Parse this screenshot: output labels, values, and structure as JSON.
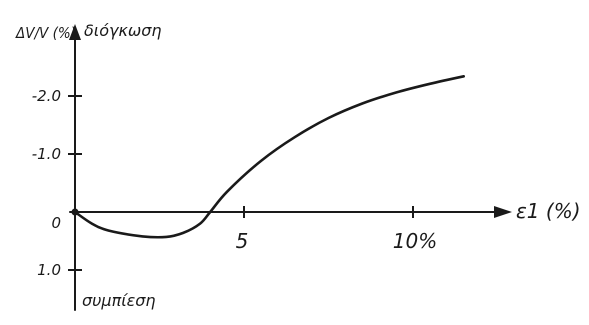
{
  "chart_data": {
    "type": "line",
    "ylabel": "ΔV/V (%)",
    "xlabel": "ε1 (%)",
    "annotations": {
      "top": "διόγκωση",
      "bottom": "συμπίεση"
    },
    "x_ticks": [
      {
        "value": 5,
        "label": "5"
      },
      {
        "value": 10,
        "label": "10%"
      }
    ],
    "y_ticks": [
      {
        "value": -2.0,
        "label": "-2.0"
      },
      {
        "value": -1.0,
        "label": "-1.0"
      },
      {
        "value": 0,
        "label": "0"
      },
      {
        "value": 1.0,
        "label": "1.0"
      }
    ],
    "xlim": [
      0,
      12.3
    ],
    "ylim": [
      1.3,
      -2.7
    ],
    "y_inverted": true,
    "grid": false,
    "series": [
      {
        "points": [
          {
            "x": 0,
            "y": 0
          },
          {
            "x": 0.5,
            "y": 0.2
          },
          {
            "x": 1.0,
            "y": 0.32
          },
          {
            "x": 2.0,
            "y": 0.42
          },
          {
            "x": 2.7,
            "y": 0.43
          },
          {
            "x": 3.2,
            "y": 0.36
          },
          {
            "x": 3.7,
            "y": 0.2
          },
          {
            "x": 4.0,
            "y": 0
          },
          {
            "x": 4.5,
            "y": -0.35
          },
          {
            "x": 5.5,
            "y": -0.88
          },
          {
            "x": 6.5,
            "y": -1.29
          },
          {
            "x": 7.5,
            "y": -1.62
          },
          {
            "x": 8.5,
            "y": -1.87
          },
          {
            "x": 9.5,
            "y": -2.06
          },
          {
            "x": 10.5,
            "y": -2.21
          },
          {
            "x": 11.5,
            "y": -2.34
          }
        ]
      }
    ]
  }
}
